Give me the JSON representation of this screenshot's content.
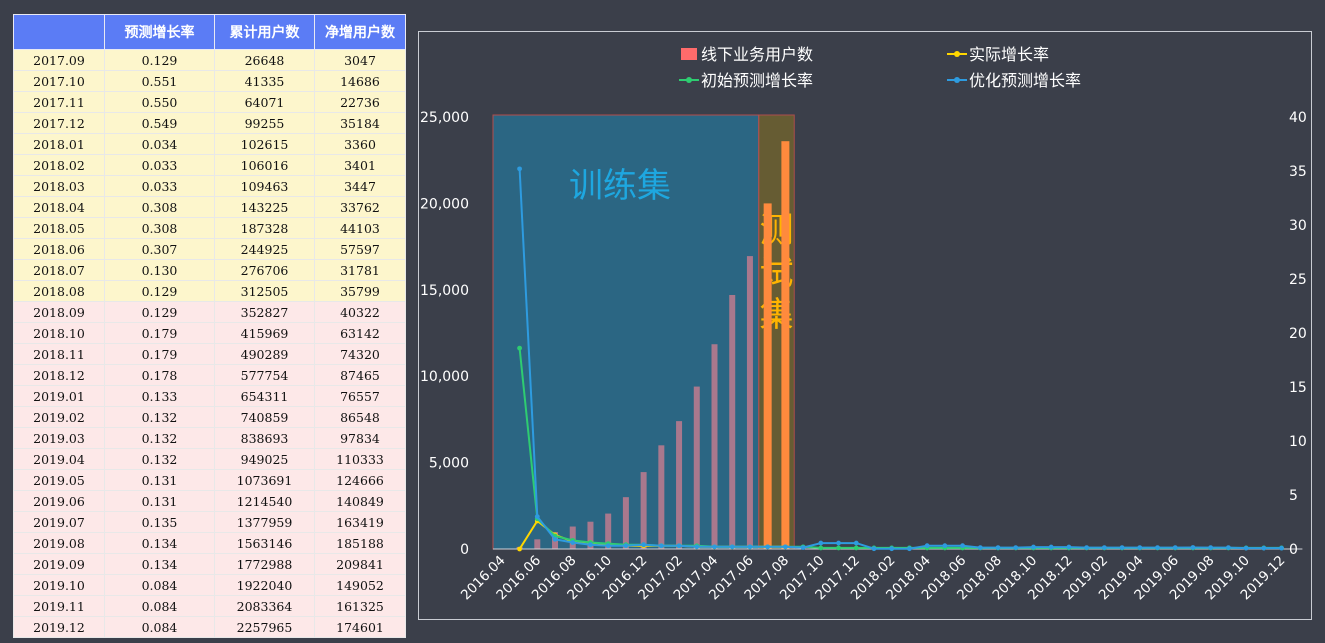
{
  "table": {
    "headers": [
      "",
      "预测增长率",
      "累计用户数",
      "净增用户数"
    ],
    "rows": [
      {
        "period": "2017.09",
        "rate": "0.129",
        "cumulative": "26648",
        "net": "3047",
        "group": "train"
      },
      {
        "period": "2017.10",
        "rate": "0.551",
        "cumulative": "41335",
        "net": "14686",
        "group": "train"
      },
      {
        "period": "2017.11",
        "rate": "0.550",
        "cumulative": "64071",
        "net": "22736",
        "group": "train"
      },
      {
        "period": "2017.12",
        "rate": "0.549",
        "cumulative": "99255",
        "net": "35184",
        "group": "train"
      },
      {
        "period": "2018.01",
        "rate": "0.034",
        "cumulative": "102615",
        "net": "3360",
        "group": "train"
      },
      {
        "period": "2018.02",
        "rate": "0.033",
        "cumulative": "106016",
        "net": "3401",
        "group": "train"
      },
      {
        "period": "2018.03",
        "rate": "0.033",
        "cumulative": "109463",
        "net": "3447",
        "group": "train"
      },
      {
        "period": "2018.04",
        "rate": "0.308",
        "cumulative": "143225",
        "net": "33762",
        "group": "train"
      },
      {
        "period": "2018.05",
        "rate": "0.308",
        "cumulative": "187328",
        "net": "44103",
        "group": "train"
      },
      {
        "period": "2018.06",
        "rate": "0.307",
        "cumulative": "244925",
        "net": "57597",
        "group": "train"
      },
      {
        "period": "2018.07",
        "rate": "0.130",
        "cumulative": "276706",
        "net": "31781",
        "group": "train"
      },
      {
        "period": "2018.08",
        "rate": "0.129",
        "cumulative": "312505",
        "net": "35799",
        "group": "train"
      },
      {
        "period": "2018.09",
        "rate": "0.129",
        "cumulative": "352827",
        "net": "40322",
        "group": "test"
      },
      {
        "period": "2018.10",
        "rate": "0.179",
        "cumulative": "415969",
        "net": "63142",
        "group": "test"
      },
      {
        "period": "2018.11",
        "rate": "0.179",
        "cumulative": "490289",
        "net": "74320",
        "group": "test"
      },
      {
        "period": "2018.12",
        "rate": "0.178",
        "cumulative": "577754",
        "net": "87465",
        "group": "test"
      },
      {
        "period": "2019.01",
        "rate": "0.133",
        "cumulative": "654311",
        "net": "76557",
        "group": "test"
      },
      {
        "period": "2019.02",
        "rate": "0.132",
        "cumulative": "740859",
        "net": "86548",
        "group": "test"
      },
      {
        "period": "2019.03",
        "rate": "0.132",
        "cumulative": "838693",
        "net": "97834",
        "group": "test"
      },
      {
        "period": "2019.04",
        "rate": "0.132",
        "cumulative": "949025",
        "net": "110333",
        "group": "test"
      },
      {
        "period": "2019.05",
        "rate": "0.131",
        "cumulative": "1073691",
        "net": "124666",
        "group": "test"
      },
      {
        "period": "2019.06",
        "rate": "0.131",
        "cumulative": "1214540",
        "net": "140849",
        "group": "test"
      },
      {
        "period": "2019.07",
        "rate": "0.135",
        "cumulative": "1377959",
        "net": "163419",
        "group": "test"
      },
      {
        "period": "2019.08",
        "rate": "0.134",
        "cumulative": "1563146",
        "net": "185188",
        "group": "test"
      },
      {
        "period": "2019.09",
        "rate": "0.134",
        "cumulative": "1772988",
        "net": "209841",
        "group": "test"
      },
      {
        "period": "2019.10",
        "rate": "0.084",
        "cumulative": "1922040",
        "net": "149052",
        "group": "test"
      },
      {
        "period": "2019.11",
        "rate": "0.084",
        "cumulative": "2083364",
        "net": "161325",
        "group": "test"
      },
      {
        "period": "2019.12",
        "rate": "0.084",
        "cumulative": "2257965",
        "net": "174601",
        "group": "test"
      }
    ]
  },
  "colors": {
    "bar_train": "#a9788d",
    "bar_test": "#ff8a3d",
    "legend_bar": "#ff6b6b",
    "actual_rate": "#ffd700",
    "initial_rate": "#2ecc71",
    "optimized_rate": "#2e9bdf",
    "train_region": "#2a6b8a",
    "test_region": "#6e6230",
    "train_label": "#1ea7e0",
    "test_label": "#ffb400",
    "axis_text": "#ffffff"
  },
  "chart_data": {
    "type": "bar+line",
    "categories": [
      "2016.04",
      "2016.05",
      "2016.06",
      "2016.07",
      "2016.08",
      "2016.09",
      "2016.10",
      "2016.11",
      "2016.12",
      "2017.01",
      "2017.02",
      "2017.03",
      "2017.04",
      "2017.05",
      "2017.06",
      "2017.07",
      "2017.08",
      "2017.09",
      "2017.10",
      "2017.11",
      "2017.12",
      "2018.01",
      "2018.02",
      "2018.03",
      "2018.04",
      "2018.05",
      "2018.06",
      "2018.07",
      "2018.08",
      "2018.09",
      "2018.10",
      "2018.11",
      "2018.12",
      "2019.01",
      "2019.02",
      "2019.03",
      "2019.04",
      "2019.05",
      "2019.06",
      "2019.07",
      "2019.08",
      "2019.09",
      "2019.10",
      "2019.11",
      "2019.12"
    ],
    "x_tick_labels": [
      "2016.04",
      "2016.06",
      "2016.08",
      "2016.10",
      "2016.12",
      "2017.02",
      "2017.04",
      "2017.06",
      "2017.08",
      "2017.10",
      "2017.12",
      "2018.02",
      "2018.04",
      "2018.06",
      "2018.08",
      "2018.10",
      "2018.12",
      "2019.02",
      "2019.04",
      "2019.06",
      "2019.08",
      "2019.10",
      "2019.12"
    ],
    "y_left": {
      "ticks": [
        "0",
        "5,000",
        "10,000",
        "15,000",
        "20,000",
        "25,000"
      ],
      "lim": [
        0,
        25000
      ]
    },
    "y_right": {
      "ticks": [
        "0",
        "5",
        "10",
        "15",
        "20",
        "25",
        "30",
        "35",
        "40"
      ],
      "lim": [
        0,
        40
      ]
    },
    "bars": {
      "name": "线下业务用户数",
      "values": [
        0,
        120,
        560,
        980,
        1300,
        1580,
        2050,
        3000,
        4450,
        6000,
        7400,
        9400,
        11850,
        14700,
        16950,
        20000,
        23600,
        null,
        null,
        null,
        null,
        null,
        null,
        null,
        null,
        null,
        null,
        null,
        null,
        null,
        null,
        null,
        null,
        null,
        null,
        null,
        null,
        null,
        null,
        null,
        null,
        null,
        null,
        null,
        null
      ],
      "test_from_index": 15
    },
    "series": [
      {
        "name": "实际增长率",
        "values": [
          null,
          0,
          2.6,
          1.3,
          0.7,
          0.6,
          0.4,
          0.3,
          0.3,
          0.3,
          0.3,
          0.2,
          0.2,
          0.2,
          0.2,
          0.2,
          0.2,
          null,
          null,
          null,
          null,
          null,
          null,
          null,
          null,
          null,
          null,
          null,
          null,
          null,
          null,
          null,
          null,
          null,
          null,
          null,
          null,
          null,
          null,
          null,
          null,
          null,
          null,
          null,
          null
        ]
      },
      {
        "name": "初始预测增长率",
        "values": [
          null,
          18.6,
          2.8,
          1.2,
          0.8,
          0.6,
          0.5,
          0.4,
          0.4,
          0.3,
          0.3,
          0.3,
          0.2,
          0.2,
          0.2,
          0.2,
          0.2,
          0.2,
          0.1,
          0.1,
          0.1,
          0.1,
          0.1,
          0.1,
          0.1,
          0.1,
          0.1,
          0.1,
          0.1,
          0.1,
          0.1,
          0.1,
          0.1,
          0.1,
          0.1,
          0.1,
          0.1,
          0.1,
          0.1,
          0.1,
          0.1,
          0.1,
          0.1,
          0.1,
          0.1
        ]
      },
      {
        "name": "优化预测增长率",
        "values": [
          null,
          35.2,
          3.0,
          0.9,
          0.6,
          0.4,
          0.3,
          0.3,
          0.4,
          0.3,
          0.3,
          0.2,
          0.2,
          0.2,
          0.2,
          0.2,
          0.2,
          0.13,
          0.55,
          0.55,
          0.55,
          0.03,
          0.03,
          0.03,
          0.31,
          0.31,
          0.31,
          0.13,
          0.13,
          0.13,
          0.18,
          0.18,
          0.18,
          0.13,
          0.13,
          0.13,
          0.13,
          0.13,
          0.13,
          0.14,
          0.13,
          0.13,
          0.08,
          0.08,
          0.08
        ]
      }
    ],
    "regions": [
      {
        "label": "训练集",
        "from": "2016.04",
        "to": "2017.06"
      },
      {
        "label": "测试集",
        "from": "2017.07",
        "to": "2017.08"
      }
    ],
    "legend_position": "top"
  }
}
